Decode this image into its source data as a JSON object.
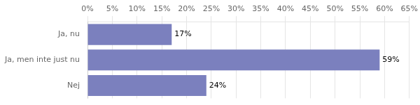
{
  "chart_data": {
    "type": "bar",
    "orientation": "horizontal",
    "categories": [
      "Ja, nu",
      "Ja, men inte just nu",
      "Nej"
    ],
    "values": [
      17,
      59,
      24
    ],
    "value_labels": [
      "17%",
      "59%",
      "24%"
    ],
    "data_labels": true,
    "color": "#7b80be",
    "xlim": [
      0,
      65
    ],
    "xticks": [
      {
        "value": 0,
        "label": "0%"
      },
      {
        "value": 5,
        "label": "5%"
      },
      {
        "value": 10,
        "label": "10%"
      },
      {
        "value": 15,
        "label": "15%"
      },
      {
        "value": 20,
        "label": "20%"
      },
      {
        "value": 25,
        "label": "25%"
      },
      {
        "value": 30,
        "label": "30%"
      },
      {
        "value": 35,
        "label": "35%"
      },
      {
        "value": 40,
        "label": "40%"
      },
      {
        "value": 45,
        "label": "45%"
      },
      {
        "value": 50,
        "label": "50%"
      },
      {
        "value": 55,
        "label": "55%"
      },
      {
        "value": 60,
        "label": "60%"
      },
      {
        "value": 65,
        "label": "65%"
      }
    ],
    "grid": true
  }
}
